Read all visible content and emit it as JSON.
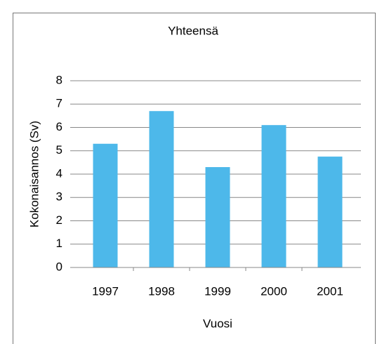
{
  "chart_data": {
    "type": "bar",
    "title": "Yhteensä",
    "x_label": "Vuosi",
    "y_label": "Kokonaisannos (Sv)",
    "categories": [
      "1997",
      "1998",
      "1999",
      "2000",
      "2001"
    ],
    "values": [
      5.3,
      6.7,
      4.3,
      6.1,
      4.75
    ],
    "color": "#4db8ea",
    "ylim": [
      0,
      8
    ],
    "yticks": [
      0,
      1,
      2,
      3,
      4,
      5,
      6,
      7,
      8
    ],
    "grid": true
  }
}
